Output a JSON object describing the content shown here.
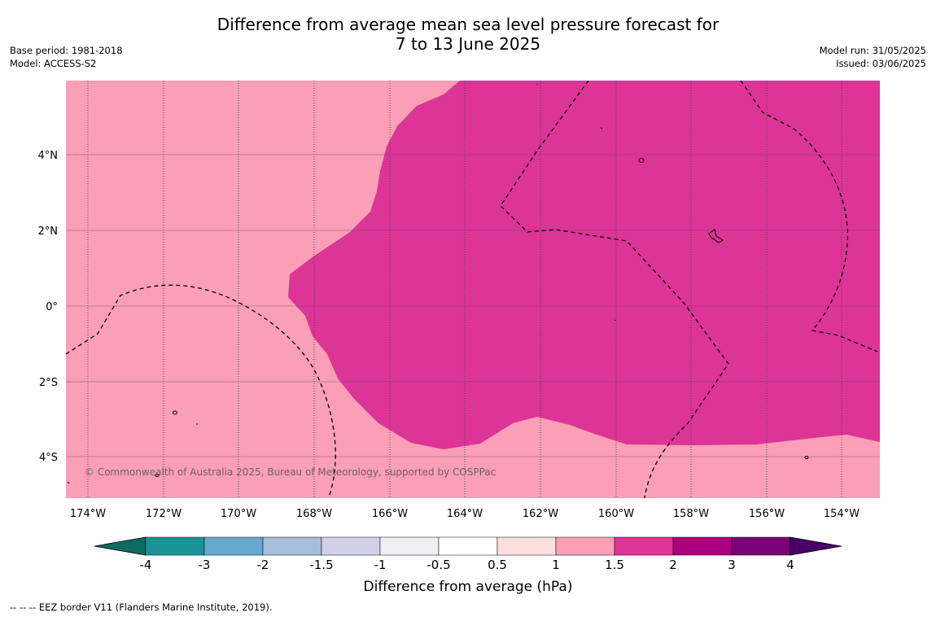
{
  "title_line1": "Difference from average mean sea level pressure forecast for",
  "title_line2": "7 to 13 June 2025",
  "base_period": "Base period: 1981-2018",
  "model": "Model: ACCESS-S2",
  "model_run": "Model run: 31/05/2025",
  "issued": "Issued: 03/06/2025",
  "copyright": "© Commonwealth of Australia 2025, Bureau of Meteorology, supported by COSPPac",
  "lon_ticks": [
    "174°W",
    "172°W",
    "170°W",
    "168°W",
    "166°W",
    "164°W",
    "162°W",
    "160°W",
    "158°W",
    "156°W",
    "154°W"
  ],
  "lat_ticks": [
    "4°N",
    "2°N",
    "0°",
    "2°S",
    "4°S"
  ],
  "colorbar": {
    "label": "Difference from average (hPa)",
    "ticks": [
      "-4",
      "-3",
      "-2",
      "-1.5",
      "-1",
      "-0.5",
      "0.5",
      "1",
      "1.5",
      "2",
      "3",
      "4"
    ],
    "colors": [
      "#0d6b62",
      "#1a9398",
      "#67a9cf",
      "#a6bddb",
      "#d0d1e6",
      "#f1eef6",
      "#ffffff",
      "#fde0dd",
      "#fa9fb5",
      "#dd3497",
      "#ae017e",
      "#7a0177",
      "#49006a"
    ]
  },
  "footer": "--  --  -- EEZ border V11 (Flanders Marine Institute, 2019).",
  "colors": {
    "band_1_to_1_5": "#fa9fb5",
    "band_1_5_to_2": "#dd3497"
  }
}
